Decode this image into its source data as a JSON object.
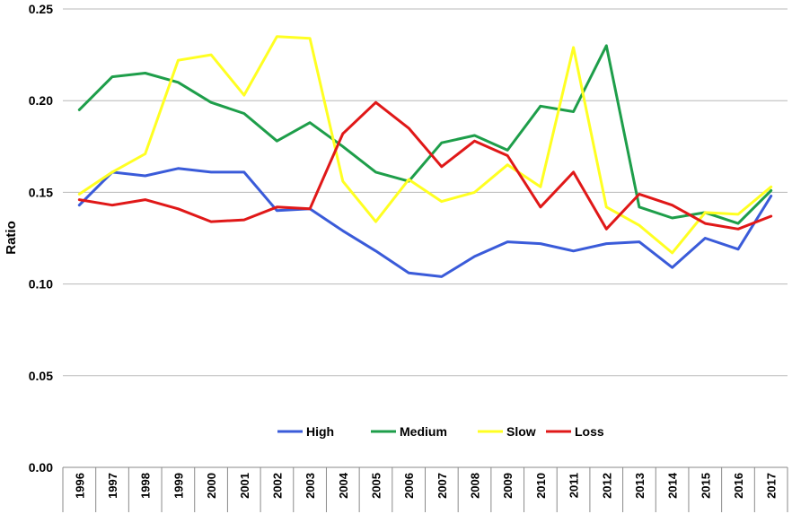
{
  "chart_data": {
    "type": "line",
    "title": "",
    "xlabel": "",
    "ylabel": "Ratio",
    "ylim": [
      0,
      0.25
    ],
    "yticks": [
      "0.00",
      "0.05",
      "0.10",
      "0.15",
      "0.20",
      "0.25"
    ],
    "grid": "horizontal",
    "legend_position": "bottom-center",
    "categories": [
      "1996",
      "1997",
      "1998",
      "1999",
      "2000",
      "2001",
      "2002",
      "2003",
      "2004",
      "2005",
      "2006",
      "2007",
      "2008",
      "2009",
      "2010",
      "2011",
      "2012",
      "2013",
      "2014",
      "2015",
      "2016",
      "2017"
    ],
    "series": [
      {
        "name": "High",
        "color": "#3a5bd9",
        "values": [
          0.143,
          0.161,
          0.159,
          0.163,
          0.161,
          0.161,
          0.14,
          0.141,
          0.129,
          0.118,
          0.106,
          0.104,
          0.115,
          0.123,
          0.122,
          0.118,
          0.122,
          0.123,
          0.109,
          0.125,
          0.119,
          0.148
        ]
      },
      {
        "name": "Medium",
        "color": "#1e9e4a",
        "values": [
          0.195,
          0.213,
          0.215,
          0.21,
          0.199,
          0.193,
          0.178,
          0.188,
          0.175,
          0.161,
          0.156,
          0.177,
          0.181,
          0.173,
          0.197,
          0.194,
          0.23,
          0.142,
          0.136,
          0.139,
          0.133,
          0.151
        ]
      },
      {
        "name": "Slow",
        "color": "#ffff22",
        "values": [
          0.149,
          0.161,
          0.171,
          0.222,
          0.225,
          0.203,
          0.235,
          0.234,
          0.156,
          0.134,
          0.157,
          0.145,
          0.15,
          0.165,
          0.153,
          0.229,
          0.142,
          0.132,
          0.117,
          0.139,
          0.138,
          0.153
        ]
      },
      {
        "name": "Loss",
        "color": "#e01818",
        "values": [
          0.146,
          0.143,
          0.146,
          0.141,
          0.134,
          0.135,
          0.142,
          0.141,
          0.182,
          0.199,
          0.185,
          0.164,
          0.178,
          0.17,
          0.142,
          0.161,
          0.13,
          0.149,
          0.143,
          0.133,
          0.13,
          0.137
        ]
      }
    ]
  }
}
